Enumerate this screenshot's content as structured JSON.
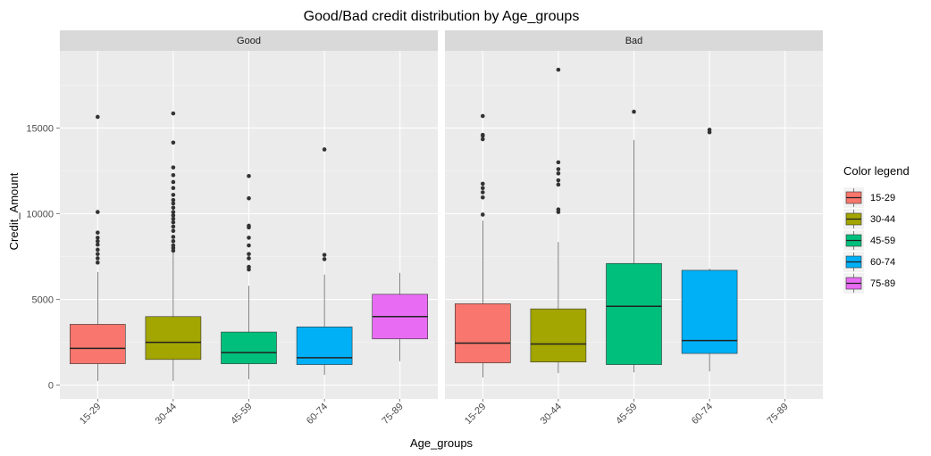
{
  "chart_data": {
    "type": "boxplot",
    "title": "Good/Bad credit distribution by Age_groups",
    "xlabel": "Age_groups",
    "ylabel": "Credit_Amount",
    "ylim": [
      -800,
      19500
    ],
    "y_ticks": [
      0,
      5000,
      10000,
      15000
    ],
    "y_tick_labels": [
      "0",
      "5000",
      "10000",
      "15000"
    ],
    "grid": true,
    "legend_position": "right",
    "legend_title": "Color legend",
    "categories": [
      "15-29",
      "30-44",
      "45-59",
      "60-74",
      "75-89"
    ],
    "colors": {
      "15-29": "#f8766d",
      "30-44": "#a3a500",
      "45-59": "#00bf7d",
      "60-74": "#00b0f6",
      "75-89": "#e76bf3"
    },
    "panels": [
      {
        "name": "Good",
        "boxes": [
          {
            "group": "15-29",
            "min": 250,
            "q1": 1250,
            "median": 2150,
            "q3": 3550,
            "max": 6600,
            "outliers": [
              7150,
              7400,
              7650,
              7900,
              8200,
              8400,
              8600,
              8900,
              10100,
              15650
            ]
          },
          {
            "group": "30-44",
            "min": 250,
            "q1": 1500,
            "median": 2500,
            "q3": 4000,
            "max": 7750,
            "outliers": [
              7850,
              8000,
              8150,
              8400,
              8650,
              9000,
              9250,
              9500,
              9700,
              9900,
              10100,
              10350,
              10600,
              10800,
              11100,
              11500,
              11850,
              12250,
              12700,
              14150,
              15850
            ]
          },
          {
            "group": "45-59",
            "min": 350,
            "q1": 1250,
            "median": 1900,
            "q3": 3100,
            "max": 5800,
            "outliers": [
              6750,
              6900,
              7400,
              7650,
              8150,
              8600,
              9200,
              9300,
              10900,
              12200
            ]
          },
          {
            "group": "60-74",
            "min": 600,
            "q1": 1200,
            "median": 1600,
            "q3": 3400,
            "max": 6450,
            "outliers": [
              7350,
              7600,
              13750
            ]
          },
          {
            "group": "75-89",
            "min": 1400,
            "q1": 2700,
            "median": 4000,
            "q3": 5300,
            "max": 6550,
            "outliers": []
          }
        ]
      },
      {
        "name": "Bad",
        "boxes": [
          {
            "group": "15-29",
            "min": 450,
            "q1": 1300,
            "median": 2450,
            "q3": 4750,
            "max": 9600,
            "outliers": [
              9950,
              10950,
              11250,
              11500,
              11750,
              14350,
              14550,
              14600,
              15700
            ]
          },
          {
            "group": "30-44",
            "min": 700,
            "q1": 1350,
            "median": 2400,
            "q3": 4450,
            "max": 8350,
            "outliers": [
              10100,
              10250,
              11700,
              11950,
              12350,
              12600,
              13000,
              18400
            ]
          },
          {
            "group": "45-59",
            "min": 750,
            "q1": 1200,
            "median": 4600,
            "q3": 7100,
            "max": 14300,
            "outliers": [
              15950
            ]
          },
          {
            "group": "60-74",
            "min": 800,
            "q1": 1850,
            "median": 2600,
            "q3": 6700,
            "max": 6800,
            "outliers": [
              14750,
              14900
            ]
          }
        ]
      }
    ]
  }
}
